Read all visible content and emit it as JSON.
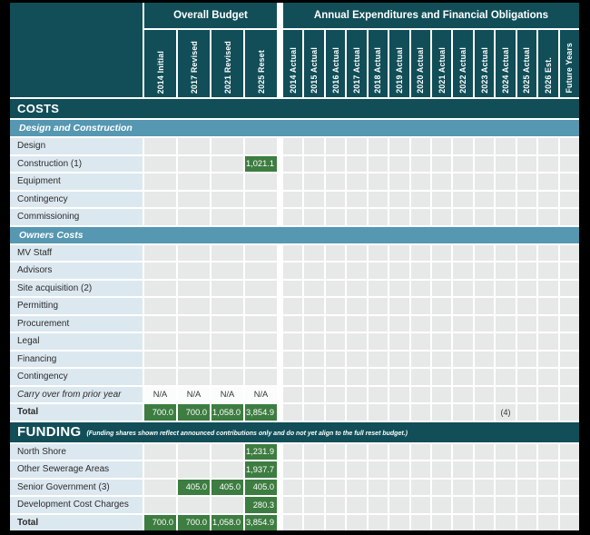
{
  "colors": {
    "frame_border": "#000000",
    "teal_dark": "#114e58",
    "blue_band": "#5697b1",
    "label_cell_bg": "#dce8f0",
    "data_cell_bg": "#e7e8e8",
    "green_value_bg": "#3d7d41",
    "gridline": "#ffffff"
  },
  "table": {
    "header": {
      "groups": [
        {
          "label": "Overall Budget",
          "span": 4
        },
        {
          "label": "Annual Expenditures and Financial Obligations",
          "span": 14
        }
      ],
      "columns": [
        "2014 Initial",
        "2017 Revised",
        "2021 Revised",
        "2025 Reset",
        "2014 Actual",
        "2015 Actual",
        "2016 Actual",
        "2017 Actual",
        "2018 Actual",
        "2019 Actual",
        "2020 Actual",
        "2021 Actual",
        "2022 Actual",
        "2023 Actual",
        "2024 Actual",
        "2025 Actual",
        "2026 Est.",
        "Future Years"
      ]
    },
    "sections": [
      {
        "type": "band_dark",
        "label": "COSTS"
      },
      {
        "type": "band_blue",
        "label": "Design and Construction"
      },
      {
        "type": "row",
        "label": "Design",
        "cells": []
      },
      {
        "type": "row",
        "label": "Construction (1)",
        "cells": [
          {
            "col": 3,
            "value": "1,021.1",
            "green": true
          }
        ]
      },
      {
        "type": "row",
        "label": "Equipment",
        "cells": []
      },
      {
        "type": "row",
        "label": "Contingency",
        "cells": []
      },
      {
        "type": "row",
        "label": "Commissioning",
        "cells": []
      },
      {
        "type": "band_blue",
        "label": "Owners Costs"
      },
      {
        "type": "row",
        "label": "MV Staff",
        "cells": []
      },
      {
        "type": "row",
        "label": "Advisors",
        "cells": []
      },
      {
        "type": "row",
        "label": "Site acquisition (2)",
        "cells": []
      },
      {
        "type": "row",
        "label": "Permitting",
        "cells": []
      },
      {
        "type": "row",
        "label": "Procurement",
        "cells": []
      },
      {
        "type": "row",
        "label": "Legal",
        "cells": []
      },
      {
        "type": "row",
        "label": "Financing",
        "cells": []
      },
      {
        "type": "row",
        "label": "Contingency",
        "cells": []
      },
      {
        "type": "row",
        "label": "Carry over from prior year",
        "italic": true,
        "cells": [
          {
            "col": 0,
            "value": "N/A",
            "na": true
          },
          {
            "col": 1,
            "value": "N/A",
            "na": true
          },
          {
            "col": 2,
            "value": "N/A",
            "na": true
          },
          {
            "col": 3,
            "value": "N/A",
            "na": true
          }
        ]
      },
      {
        "type": "row",
        "label": "Total",
        "bold": true,
        "cells": [
          {
            "col": 0,
            "value": "700.0",
            "green": true
          },
          {
            "col": 1,
            "value": "700.0",
            "green": true
          },
          {
            "col": 2,
            "value": "1,058.0",
            "green": true
          },
          {
            "col": 3,
            "value": "3,854.9",
            "green": true
          },
          {
            "col": 14,
            "value": "(4)",
            "note4": true
          }
        ]
      },
      {
        "type": "band_dark",
        "label": "FUNDING",
        "big": true,
        "note": "(Funding shares shown reflect announced contributions only and do not yet align to the full reset budget.)"
      },
      {
        "type": "row",
        "label": "North Shore",
        "cells": [
          {
            "col": 3,
            "value": "1,231.9",
            "green": true
          }
        ]
      },
      {
        "type": "row",
        "label": "Other Sewerage Areas",
        "cells": [
          {
            "col": 3,
            "value": "1,937.7",
            "green": true
          }
        ]
      },
      {
        "type": "row",
        "label": "Senior Government (3)",
        "cells": [
          {
            "col": 1,
            "value": "405.0",
            "green": true
          },
          {
            "col": 2,
            "value": "405.0",
            "green": true
          },
          {
            "col": 3,
            "value": "405.0",
            "green": true
          }
        ]
      },
      {
        "type": "row",
        "label": "Development Cost Charges",
        "cells": [
          {
            "col": 3,
            "value": "280.3",
            "green": true
          }
        ]
      },
      {
        "type": "row",
        "label": "Total",
        "bold": true,
        "cells": [
          {
            "col": 0,
            "value": "700.0",
            "green": true
          },
          {
            "col": 1,
            "value": "700.0",
            "green": true
          },
          {
            "col": 2,
            "value": "1,058.0",
            "green": true
          },
          {
            "col": 3,
            "value": "3,854.9",
            "green": true
          }
        ]
      }
    ]
  }
}
